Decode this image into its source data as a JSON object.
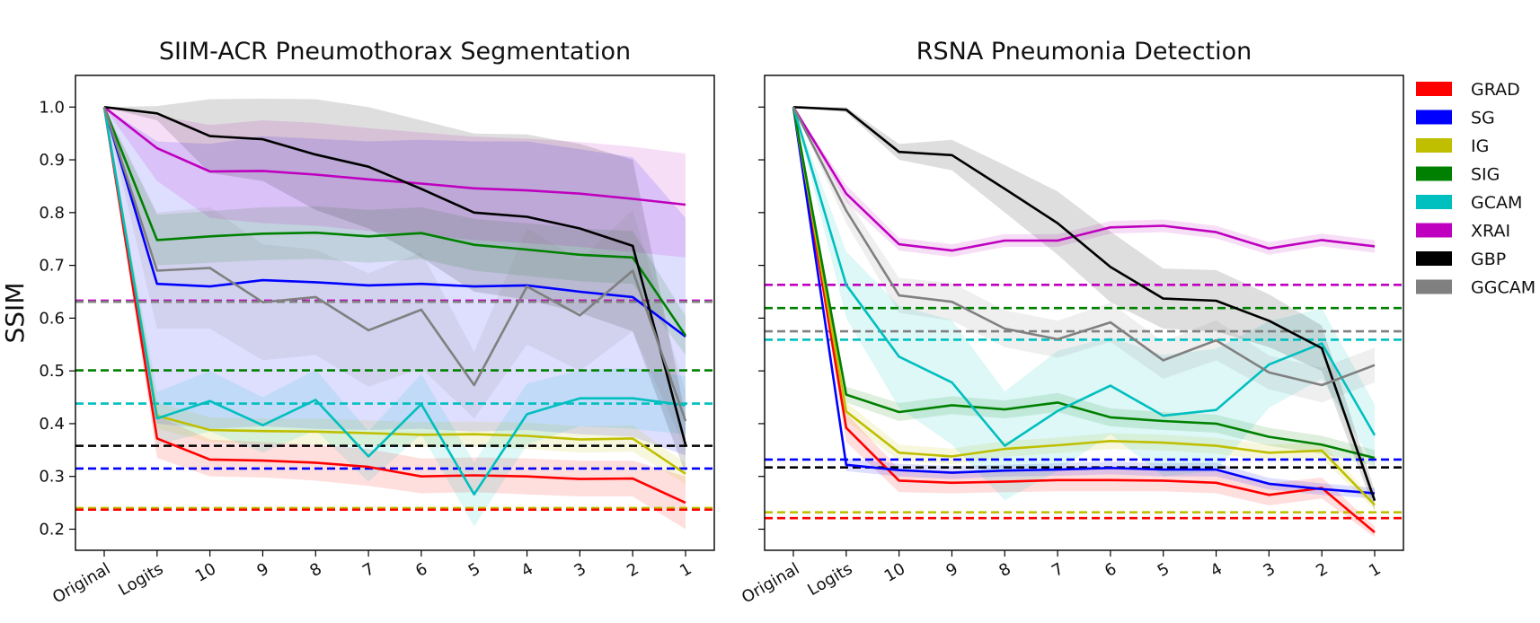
{
  "chart_data": [
    {
      "type": "line",
      "title": "SIIM-ACR Pneumothorax Segmentation",
      "xlabel": "",
      "ylabel": "SSIM",
      "categories": [
        "Original",
        "Logits",
        "10",
        "9",
        "8",
        "7",
        "6",
        "5",
        "4",
        "3",
        "2",
        "1"
      ],
      "ylim": [
        0.16,
        1.06
      ],
      "yticks": [
        0.2,
        0.3,
        0.4,
        0.5,
        0.6,
        0.7,
        0.8,
        0.9,
        1.0
      ],
      "ytick_labels": [
        "0.2",
        "0.3",
        "0.4",
        "0.5",
        "0.6",
        "0.7",
        "0.8",
        "0.9",
        "1.0"
      ],
      "series": [
        {
          "name": "GRAD",
          "color": "#ff0000",
          "values": [
            1.0,
            0.372,
            0.332,
            0.33,
            0.326,
            0.318,
            0.3,
            0.302,
            0.3,
            0.295,
            0.296,
            0.25
          ],
          "lower": [
            1.0,
            0.335,
            0.3,
            0.298,
            0.292,
            0.282,
            0.268,
            0.27,
            0.266,
            0.262,
            0.262,
            0.2
          ],
          "upper": [
            1.0,
            0.415,
            0.37,
            0.365,
            0.36,
            0.352,
            0.334,
            0.336,
            0.334,
            0.33,
            0.33,
            0.3
          ]
        },
        {
          "name": "SG",
          "color": "#0000ff",
          "values": [
            1.0,
            0.665,
            0.66,
            0.672,
            0.668,
            0.662,
            0.665,
            0.66,
            0.662,
            0.65,
            0.64,
            0.565
          ],
          "lower": [
            1.0,
            0.4,
            0.39,
            0.395,
            0.39,
            0.388,
            0.39,
            0.385,
            0.388,
            0.38,
            0.375,
            0.34
          ],
          "upper": [
            1.0,
            0.935,
            0.93,
            0.945,
            0.94,
            0.935,
            0.938,
            0.935,
            0.935,
            0.92,
            0.905,
            0.79
          ]
        },
        {
          "name": "IG",
          "color": "#bfbf00",
          "values": [
            1.0,
            0.415,
            0.388,
            0.386,
            0.385,
            0.382,
            0.379,
            0.38,
            0.377,
            0.37,
            0.372,
            0.305
          ],
          "lower": [
            1.0,
            0.39,
            0.365,
            0.362,
            0.36,
            0.358,
            0.355,
            0.356,
            0.352,
            0.345,
            0.347,
            0.285
          ],
          "upper": [
            1.0,
            0.44,
            0.412,
            0.41,
            0.41,
            0.406,
            0.403,
            0.404,
            0.402,
            0.395,
            0.397,
            0.325
          ]
        },
        {
          "name": "SIG",
          "color": "#008000",
          "values": [
            1.0,
            0.748,
            0.755,
            0.76,
            0.762,
            0.755,
            0.761,
            0.739,
            0.73,
            0.72,
            0.715,
            0.567
          ],
          "lower": [
            1.0,
            0.7,
            0.705,
            0.71,
            0.712,
            0.705,
            0.712,
            0.69,
            0.68,
            0.67,
            0.665,
            0.53
          ],
          "upper": [
            1.0,
            0.796,
            0.803,
            0.81,
            0.812,
            0.805,
            0.81,
            0.788,
            0.78,
            0.77,
            0.765,
            0.604
          ]
        },
        {
          "name": "GCAM",
          "color": "#00bfbf",
          "values": [
            1.0,
            0.41,
            0.443,
            0.397,
            0.445,
            0.338,
            0.437,
            0.266,
            0.418,
            0.448,
            0.448,
            0.435
          ],
          "lower": [
            1.0,
            0.36,
            0.385,
            0.345,
            0.388,
            0.29,
            0.38,
            0.205,
            0.36,
            0.395,
            0.39,
            0.38
          ],
          "upper": [
            1.0,
            0.46,
            0.5,
            0.45,
            0.502,
            0.386,
            0.494,
            0.327,
            0.476,
            0.501,
            0.506,
            0.49
          ]
        },
        {
          "name": "XRAI",
          "color": "#bf00bf",
          "values": [
            1.0,
            0.922,
            0.878,
            0.879,
            0.872,
            0.863,
            0.855,
            0.846,
            0.842,
            0.836,
            0.826,
            0.815
          ],
          "lower": [
            1.0,
            0.86,
            0.79,
            0.78,
            0.775,
            0.765,
            0.758,
            0.748,
            0.742,
            0.735,
            0.725,
            0.715
          ],
          "upper": [
            1.0,
            0.984,
            0.966,
            0.975,
            0.97,
            0.96,
            0.952,
            0.944,
            0.94,
            0.934,
            0.925,
            0.912
          ]
        },
        {
          "name": "GBP",
          "color": "#000000",
          "values": [
            1.0,
            0.988,
            0.945,
            0.939,
            0.91,
            0.887,
            0.845,
            0.8,
            0.792,
            0.77,
            0.737,
            0.36
          ],
          "lower": [
            1.0,
            0.975,
            0.875,
            0.86,
            0.805,
            0.77,
            0.715,
            0.65,
            0.635,
            0.61,
            0.575,
            0.305
          ],
          "upper": [
            1.0,
            1.002,
            1.015,
            1.016,
            1.015,
            1.0,
            0.975,
            0.95,
            0.948,
            0.93,
            0.9,
            0.415
          ]
        },
        {
          "name": "GGCAM",
          "color": "#808080",
          "values": [
            1.0,
            0.69,
            0.695,
            0.63,
            0.64,
            0.577,
            0.616,
            0.473,
            0.66,
            0.605,
            0.69,
            0.405
          ],
          "lower": [
            1.0,
            0.58,
            0.58,
            0.52,
            0.53,
            0.47,
            0.505,
            0.41,
            0.55,
            0.5,
            0.575,
            0.35
          ],
          "upper": [
            1.0,
            0.8,
            0.81,
            0.74,
            0.73,
            0.685,
            0.725,
            0.536,
            0.77,
            0.71,
            0.805,
            0.46
          ]
        }
      ],
      "baselines": [
        {
          "series": "XRAI",
          "value": 0.633
        },
        {
          "series": "GGCAM",
          "value": 0.631
        },
        {
          "series": "SIG",
          "value": 0.501
        },
        {
          "series": "GCAM",
          "value": 0.438
        },
        {
          "series": "GBP",
          "value": 0.358
        },
        {
          "series": "SG",
          "value": 0.315
        },
        {
          "series": "IG",
          "value": 0.24
        },
        {
          "series": "GRAD",
          "value": 0.237
        }
      ]
    },
    {
      "type": "line",
      "title": "RSNA Pneumonia Detection",
      "xlabel": "",
      "ylabel": "",
      "categories": [
        "Original",
        "Logits",
        "10",
        "9",
        "8",
        "7",
        "6",
        "5",
        "4",
        "3",
        "2",
        "1"
      ],
      "ylim": [
        0.16,
        1.06
      ],
      "yticks": [
        0.2,
        0.3,
        0.4,
        0.5,
        0.6,
        0.7,
        0.8,
        0.9,
        1.0
      ],
      "series": [
        {
          "name": "GRAD",
          "color": "#ff0000",
          "values": [
            1.0,
            0.392,
            0.292,
            0.288,
            0.29,
            0.293,
            0.293,
            0.292,
            0.288,
            0.265,
            0.278,
            0.194
          ],
          "lower": [
            1.0,
            0.365,
            0.27,
            0.268,
            0.27,
            0.272,
            0.272,
            0.272,
            0.268,
            0.245,
            0.258,
            0.185
          ],
          "upper": [
            1.0,
            0.42,
            0.314,
            0.31,
            0.312,
            0.315,
            0.315,
            0.314,
            0.31,
            0.287,
            0.298,
            0.205
          ]
        },
        {
          "name": "SG",
          "color": "#0000ff",
          "values": [
            1.0,
            0.322,
            0.312,
            0.307,
            0.311,
            0.313,
            0.316,
            0.313,
            0.313,
            0.286,
            0.276,
            0.268
          ],
          "lower": [
            1.0,
            0.31,
            0.3,
            0.295,
            0.3,
            0.301,
            0.304,
            0.3,
            0.3,
            0.275,
            0.265,
            0.258
          ],
          "upper": [
            1.0,
            0.334,
            0.324,
            0.32,
            0.322,
            0.325,
            0.328,
            0.325,
            0.326,
            0.297,
            0.287,
            0.278
          ]
        },
        {
          "name": "IG",
          "color": "#bfbf00",
          "values": [
            1.0,
            0.423,
            0.345,
            0.338,
            0.352,
            0.359,
            0.367,
            0.364,
            0.358,
            0.345,
            0.349,
            0.246
          ],
          "lower": [
            1.0,
            0.405,
            0.33,
            0.323,
            0.337,
            0.344,
            0.352,
            0.349,
            0.343,
            0.33,
            0.334,
            0.236
          ],
          "upper": [
            1.0,
            0.441,
            0.36,
            0.353,
            0.367,
            0.374,
            0.382,
            0.379,
            0.373,
            0.36,
            0.364,
            0.256
          ]
        },
        {
          "name": "SIG",
          "color": "#008000",
          "values": [
            1.0,
            0.455,
            0.422,
            0.435,
            0.427,
            0.44,
            0.412,
            0.405,
            0.4,
            0.375,
            0.36,
            0.335
          ],
          "lower": [
            1.0,
            0.44,
            0.405,
            0.418,
            0.41,
            0.422,
            0.395,
            0.388,
            0.383,
            0.358,
            0.343,
            0.32
          ],
          "upper": [
            1.0,
            0.47,
            0.439,
            0.452,
            0.444,
            0.458,
            0.429,
            0.422,
            0.417,
            0.392,
            0.377,
            0.35
          ]
        },
        {
          "name": "GCAM",
          "color": "#00bfbf",
          "values": [
            1.0,
            0.663,
            0.527,
            0.478,
            0.358,
            0.424,
            0.472,
            0.415,
            0.426,
            0.512,
            0.552,
            0.378
          ],
          "lower": [
            1.0,
            0.6,
            0.43,
            0.36,
            0.255,
            0.31,
            0.38,
            0.3,
            0.31,
            0.43,
            0.485,
            0.32
          ],
          "upper": [
            1.0,
            0.726,
            0.624,
            0.596,
            0.461,
            0.538,
            0.564,
            0.53,
            0.542,
            0.594,
            0.619,
            0.436
          ]
        },
        {
          "name": "XRAI",
          "color": "#bf00bf",
          "values": [
            1.0,
            0.836,
            0.74,
            0.728,
            0.747,
            0.747,
            0.772,
            0.775,
            0.763,
            0.732,
            0.748,
            0.736
          ],
          "lower": [
            1.0,
            0.82,
            0.728,
            0.716,
            0.735,
            0.735,
            0.76,
            0.763,
            0.751,
            0.72,
            0.736,
            0.724
          ],
          "upper": [
            1.0,
            0.852,
            0.752,
            0.74,
            0.759,
            0.759,
            0.784,
            0.787,
            0.775,
            0.744,
            0.76,
            0.748
          ]
        },
        {
          "name": "GBP",
          "color": "#000000",
          "values": [
            1.0,
            0.995,
            0.915,
            0.909,
            0.845,
            0.78,
            0.697,
            0.637,
            0.633,
            0.595,
            0.543,
            0.254
          ],
          "lower": [
            1.0,
            0.99,
            0.9,
            0.88,
            0.8,
            0.72,
            0.63,
            0.58,
            0.575,
            0.545,
            0.5,
            0.235
          ],
          "upper": [
            1.0,
            1.0,
            0.93,
            0.938,
            0.89,
            0.84,
            0.764,
            0.694,
            0.691,
            0.645,
            0.586,
            0.273
          ]
        },
        {
          "name": "GGCAM",
          "color": "#808080",
          "values": [
            1.0,
            0.804,
            0.643,
            0.631,
            0.58,
            0.56,
            0.592,
            0.52,
            0.558,
            0.497,
            0.473,
            0.511
          ],
          "lower": [
            1.0,
            0.78,
            0.61,
            0.595,
            0.545,
            0.525,
            0.555,
            0.485,
            0.52,
            0.465,
            0.44,
            0.478
          ],
          "upper": [
            1.0,
            0.828,
            0.676,
            0.667,
            0.615,
            0.595,
            0.629,
            0.555,
            0.596,
            0.529,
            0.506,
            0.544
          ]
        }
      ],
      "baselines": [
        {
          "series": "XRAI",
          "value": 0.663
        },
        {
          "series": "SIG",
          "value": 0.619
        },
        {
          "series": "GGCAM",
          "value": 0.575
        },
        {
          "series": "GCAM",
          "value": 0.559
        },
        {
          "series": "SG",
          "value": 0.332
        },
        {
          "series": "GBP",
          "value": 0.317
        },
        {
          "series": "IG",
          "value": 0.232
        },
        {
          "series": "GRAD",
          "value": 0.221
        }
      ]
    }
  ],
  "legend": {
    "placement": "right",
    "entries": [
      {
        "name": "GRAD",
        "color": "#ff0000"
      },
      {
        "name": "SG",
        "color": "#0000ff"
      },
      {
        "name": "IG",
        "color": "#bfbf00"
      },
      {
        "name": "SIG",
        "color": "#008000"
      },
      {
        "name": "GCAM",
        "color": "#00bfbf"
      },
      {
        "name": "XRAI",
        "color": "#bf00bf"
      },
      {
        "name": "GBP",
        "color": "#000000"
      },
      {
        "name": "GGCAM",
        "color": "#808080"
      }
    ]
  }
}
